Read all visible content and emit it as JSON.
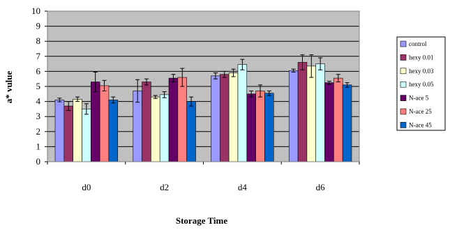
{
  "chart_data": {
    "type": "bar",
    "title": "",
    "xlabel": "Storage Time",
    "ylabel": "a* vulue",
    "ylim": [
      0,
      10
    ],
    "yticks": [
      0,
      1,
      2,
      3,
      4,
      5,
      6,
      7,
      8,
      9,
      10
    ],
    "grid": "horizontal",
    "legend_position": "right",
    "plot_background": "#c0c0c0",
    "categories": [
      "d0",
      "d2",
      "d4",
      "d6"
    ],
    "series": [
      {
        "name": "control",
        "color": "#9999ff",
        "values": [
          4.1,
          4.7,
          5.7,
          6.05
        ],
        "errors": [
          0.12,
          0.75,
          0.2,
          0.1
        ]
      },
      {
        "name": "hexy 0.01",
        "color": "#993366",
        "values": [
          3.7,
          5.3,
          5.8,
          6.6
        ],
        "errors": [
          0.3,
          0.2,
          0.2,
          0.5
        ]
      },
      {
        "name": "hexy 0.03",
        "color": "#ffffcc",
        "values": [
          4.15,
          4.3,
          5.9,
          6.35
        ],
        "errors": [
          0.15,
          0.1,
          0.25,
          0.75
        ]
      },
      {
        "name": "hexy 0.05",
        "color": "#ccffff",
        "values": [
          3.5,
          4.45,
          6.45,
          6.5
        ],
        "errors": [
          0.35,
          0.2,
          0.35,
          0.4
        ]
      },
      {
        "name": "N-ace 5",
        "color": "#660066",
        "values": [
          5.3,
          5.55,
          4.5,
          5.25
        ],
        "errors": [
          0.65,
          0.25,
          0.2,
          0.1
        ]
      },
      {
        "name": "N-ace 25",
        "color": "#ff8080",
        "values": [
          5.05,
          5.6,
          4.7,
          5.55
        ],
        "errors": [
          0.35,
          0.6,
          0.4,
          0.25
        ]
      },
      {
        "name": "N-ace 45",
        "color": "#0066cc",
        "values": [
          4.1,
          4.0,
          4.55,
          5.1
        ],
        "errors": [
          0.2,
          0.3,
          0.15,
          0.15
        ]
      }
    ]
  }
}
